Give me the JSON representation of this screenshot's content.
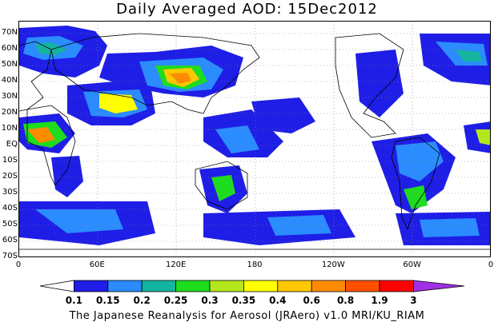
{
  "title": "Daily Averaged AOD: 15Dec2012",
  "credit": "The Japanese Reanalysis for Aerosol (JRAero) v1.0 MRI/KU_RIAM",
  "lat_labels": [
    "70N",
    "60N",
    "50N",
    "40N",
    "30N",
    "20N",
    "10N",
    "EQ",
    "10S",
    "20S",
    "30S",
    "40S",
    "50S",
    "60S",
    "70S"
  ],
  "lon_labels": [
    "0",
    "60E",
    "120E",
    "180",
    "120W",
    "60W",
    "0"
  ],
  "colorbar": {
    "labels": [
      "0.1",
      "0.15",
      "0.2",
      "0.25",
      "0.3",
      "0.35",
      "0.4",
      "0.6",
      "0.8",
      "1.9",
      "3"
    ],
    "colors": [
      "#ffffff",
      "#1e1ee6",
      "#2a8cff",
      "#14b4a0",
      "#1edc1e",
      "#b4e61e",
      "#ffff00",
      "#ffc800",
      "#ff8c00",
      "#ff5000",
      "#ff0000",
      "#a030e6"
    ]
  }
}
